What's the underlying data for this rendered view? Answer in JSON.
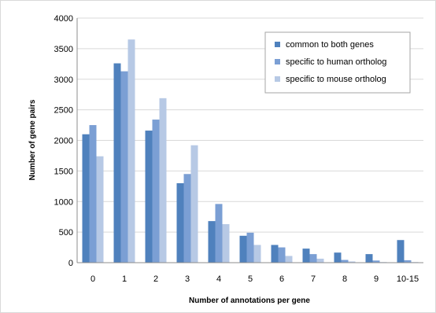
{
  "chart_data": {
    "type": "bar",
    "title": "",
    "xlabel": "Number of annotations per gene",
    "ylabel": "Number of gene pairs",
    "categories": [
      "0",
      "1",
      "2",
      "3",
      "4",
      "5",
      "6",
      "7",
      "8",
      "9",
      "10-15"
    ],
    "ylim": [
      0,
      4000
    ],
    "yticks": [
      0,
      500,
      1000,
      1500,
      2000,
      2500,
      3000,
      3500,
      4000
    ],
    "grid": true,
    "legend_position": "top-right",
    "series": [
      {
        "name": "common to both genes",
        "color": "#4f81bd",
        "values": [
          2100,
          3260,
          2160,
          1300,
          680,
          440,
          290,
          230,
          165,
          140,
          370
        ]
      },
      {
        "name": "specific to human ortholog",
        "color": "#7b9fd4",
        "values": [
          2250,
          3130,
          2340,
          1450,
          960,
          490,
          250,
          140,
          45,
          35,
          40
        ]
      },
      {
        "name": "specific to mouse ortholog",
        "color": "#b7c9e5",
        "values": [
          1740,
          3650,
          2690,
          1920,
          630,
          290,
          110,
          65,
          20,
          10,
          10
        ]
      }
    ]
  }
}
